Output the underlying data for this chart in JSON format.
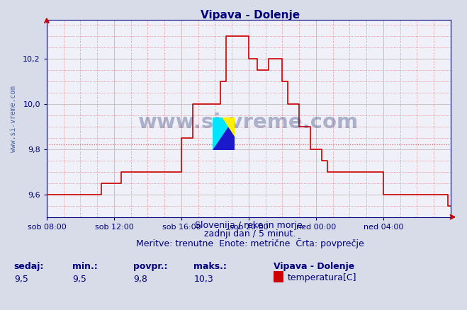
{
  "title": "Vipava - Dolenje",
  "title_color": "#000080",
  "bg_color": "#d8dce8",
  "plot_bg_color": "#f0f0f8",
  "grid_color_major": "#c0c0c0",
  "grid_color_minor": "#e8b0b0",
  "line_color": "#cc0000",
  "line_width": 1.2,
  "ylabel_text": "www.si-vreme.com",
  "ylabel_color": "#4060a0",
  "ylabel_fontsize": 7,
  "axis_color": "#000080",
  "tick_color": "#000080",
  "tick_fontsize": 8,
  "xlim": [
    0,
    288
  ],
  "ylim": [
    9.5,
    10.37
  ],
  "yticks": [
    9.6,
    9.8,
    10.0,
    10.2
  ],
  "xtick_positions": [
    0,
    48,
    96,
    144,
    192,
    240
  ],
  "xtick_labels": [
    "sob 08:00",
    "sob 12:00",
    "sob 16:00",
    "sob 20:00",
    "ned 00:00",
    "ned 04:00"
  ],
  "footer_line1": "Slovenija / reke in morje.",
  "footer_line2": "zadnji dan / 5 minut.",
  "footer_line3": "Meritve: trenutne  Enote: metrične  Črta: povprečje",
  "footer_color": "#000080",
  "footer_fontsize": 9,
  "stat_labels": [
    "sedaj:",
    "min.:",
    "povpr.:",
    "maks.:"
  ],
  "stat_values": [
    "9,5",
    "9,5",
    "9,8",
    "10,3"
  ],
  "stat_color": "#000080",
  "stat_fontsize": 9,
  "legend_title": "Vipava - Dolenje",
  "legend_label": "temperatura[C]",
  "legend_color": "#cc0000",
  "watermark_text": "www.si-vreme.com",
  "avg_line_value": 9.82,
  "avg_line_color": "#e06060",
  "data_x": [
    0,
    4,
    8,
    12,
    16,
    20,
    24,
    28,
    32,
    36,
    39,
    47,
    53,
    64,
    72,
    80,
    84,
    88,
    96,
    104,
    108,
    116,
    124,
    128,
    132,
    136,
    140,
    144,
    150,
    152,
    158,
    160,
    162,
    164,
    168,
    170,
    172,
    174,
    176,
    180,
    184,
    188,
    192,
    196,
    200,
    204,
    208,
    210,
    212,
    216,
    220,
    224,
    228,
    232,
    236,
    240,
    244,
    248,
    252,
    256,
    260,
    264,
    268,
    272,
    276,
    280,
    284,
    286,
    288
  ],
  "data_y": [
    9.6,
    9.6,
    9.6,
    9.6,
    9.6,
    9.6,
    9.6,
    9.6,
    9.6,
    9.6,
    9.65,
    9.65,
    9.7,
    9.7,
    9.7,
    9.7,
    9.7,
    9.7,
    9.85,
    10.0,
    10.0,
    10.0,
    10.1,
    10.3,
    10.3,
    10.3,
    10.3,
    10.2,
    10.15,
    10.15,
    10.2,
    10.2,
    10.2,
    10.2,
    10.1,
    10.1,
    10.0,
    10.0,
    10.0,
    9.9,
    9.9,
    9.8,
    9.8,
    9.75,
    9.7,
    9.7,
    9.7,
    9.7,
    9.7,
    9.7,
    9.7,
    9.7,
    9.7,
    9.7,
    9.7,
    9.6,
    9.6,
    9.6,
    9.6,
    9.6,
    9.6,
    9.6,
    9.6,
    9.6,
    9.6,
    9.6,
    9.6,
    9.55,
    9.55
  ]
}
